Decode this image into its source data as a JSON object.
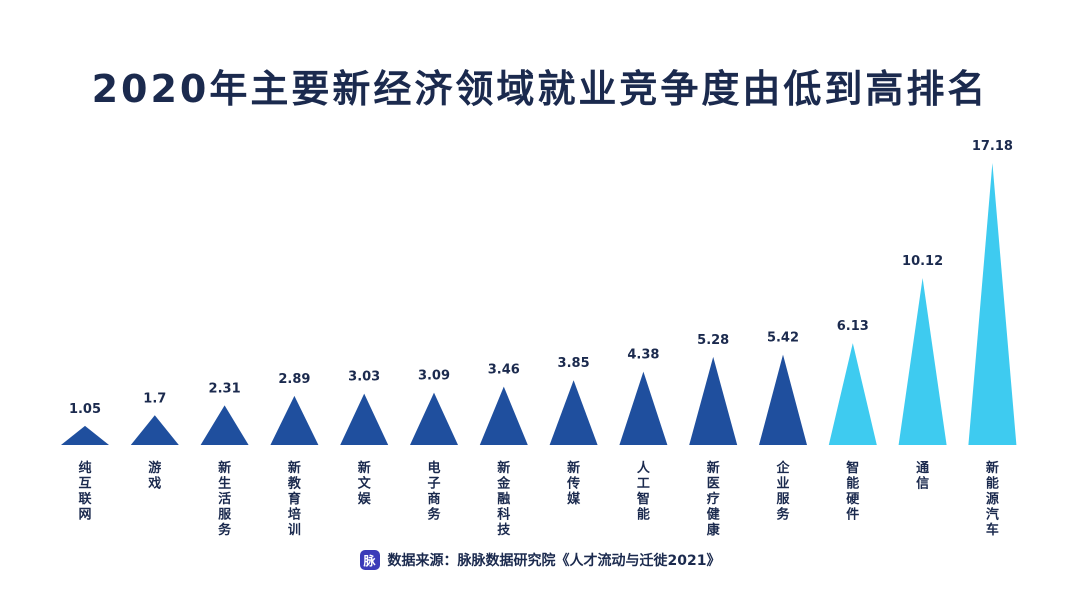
{
  "chart_data": {
    "type": "bar",
    "title": "2020年主要新经济领域就业竞争度由低到高排名",
    "categories": [
      "纯互联网",
      "游戏",
      "新生活服务",
      "新教育培训",
      "新文娱",
      "电子商务",
      "新金融科技",
      "新传媒",
      "人工智能",
      "新医疗健康",
      "企业服务",
      "智能硬件",
      "通信",
      "新能源汽车"
    ],
    "values": [
      1.05,
      1.7,
      2.31,
      2.89,
      3.03,
      3.09,
      3.46,
      3.85,
      4.38,
      5.28,
      5.42,
      6.13,
      10.12,
      17.18
    ],
    "value_labels": [
      "1.05",
      "1.7",
      "2.31",
      "2.89",
      "3.03",
      "3.09",
      "3.46",
      "3.85",
      "4.38",
      "5.28",
      "5.42",
      "6.13",
      "10.12",
      "17.18"
    ],
    "highlighted": [
      false,
      false,
      false,
      false,
      false,
      false,
      false,
      false,
      false,
      false,
      false,
      true,
      true,
      true
    ],
    "colors": {
      "default": "#1f4f9e",
      "highlight": "#3ecbf0"
    },
    "mark_shape": "triangle",
    "grid": false,
    "xlabel": "",
    "ylabel": ""
  },
  "source": {
    "logo_text": "脉",
    "text": "数据来源：脉脉数据研究院《人才流动与迁徙2021》"
  }
}
